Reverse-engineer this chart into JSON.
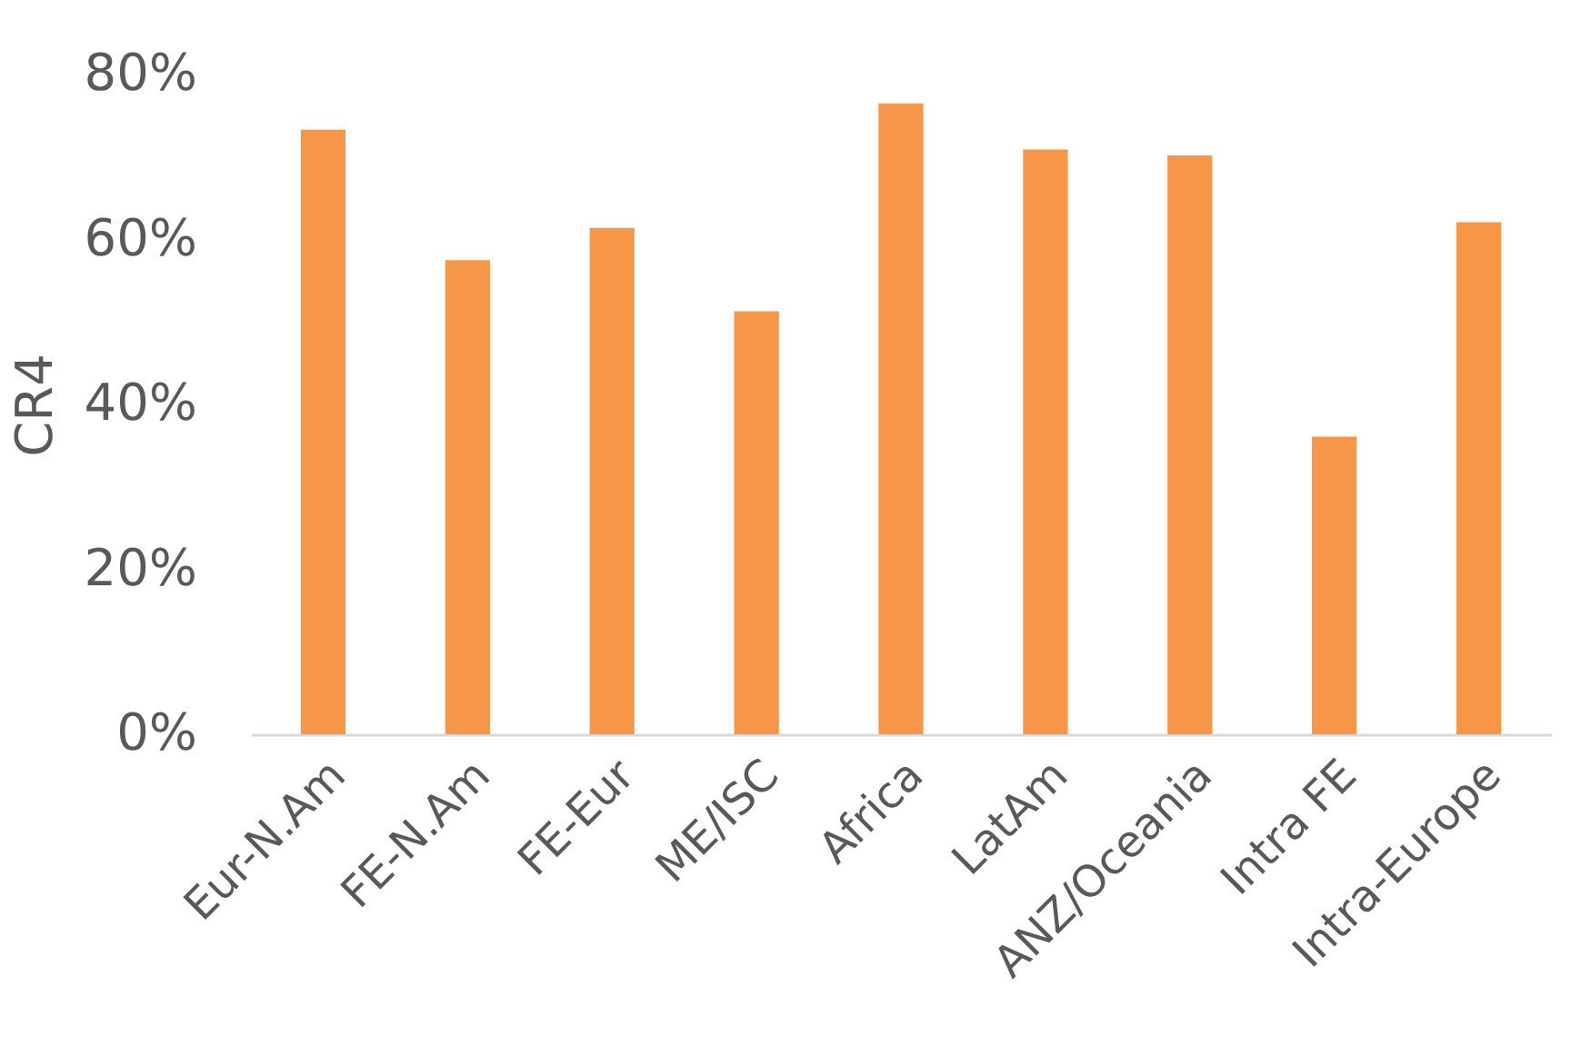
{
  "chart_data": {
    "type": "bar",
    "ylabel": "CR4",
    "categories": [
      "Eur-N.Am",
      "FE-N.Am",
      "FE-Eur",
      "ME/ISC",
      "Africa",
      "LatAm",
      "ANZ/Oceania",
      "Intra FE",
      "Intra-Europe"
    ],
    "values": [
      73.3,
      57.5,
      61.4,
      51.3,
      76.5,
      70.9,
      70.2,
      36.1,
      62.1
    ],
    "color": "#f79646",
    "ylim": [
      0,
      80
    ],
    "yticks": [
      {
        "value": 0,
        "label": "0%"
      },
      {
        "value": 20,
        "label": "20%"
      },
      {
        "value": 40,
        "label": "40%"
      },
      {
        "value": 60,
        "label": "60%"
      },
      {
        "value": 80,
        "label": "80%"
      }
    ],
    "grid": false
  }
}
